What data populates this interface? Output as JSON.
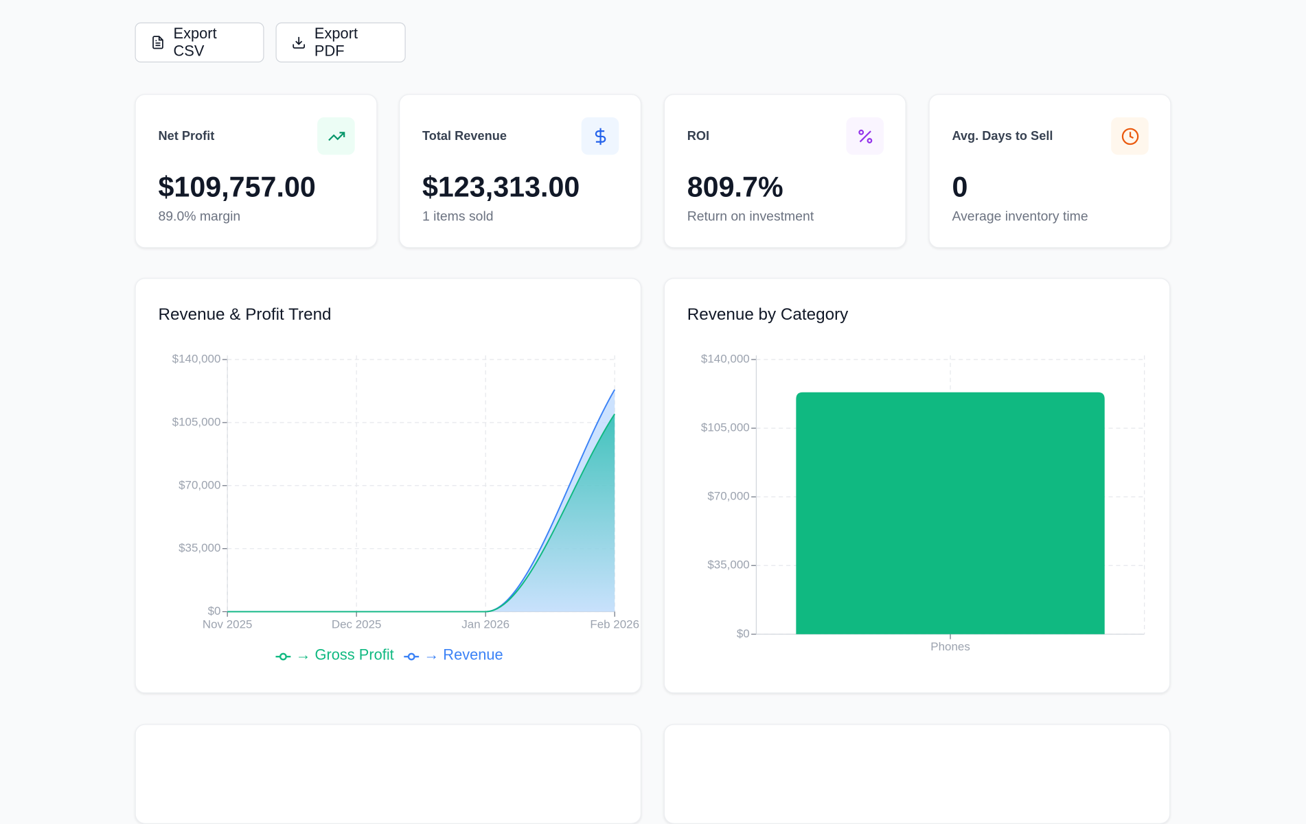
{
  "toolbar": {
    "buttons": [
      "Export CSV",
      "Export PDF"
    ]
  },
  "kpis": [
    {
      "label": "Net Profit",
      "value": "$109,757.00",
      "sub": "89.0% margin"
    },
    {
      "label": "Total Revenue",
      "value": "$123,313.00",
      "sub": "1 items sold"
    },
    {
      "label": "ROI",
      "value": "809.7%",
      "sub": "Return on investment"
    },
    {
      "label": "Avg. Days to Sell",
      "value": "0",
      "sub": "Average inventory time"
    }
  ],
  "chart_data": [
    {
      "type": "line",
      "title": "Revenue & Profit Trend",
      "categories": [
        "Nov 2025",
        "Dec 2025",
        "Jan 2026",
        "Feb 2026"
      ],
      "series": [
        {
          "name": "→ Gross Profit",
          "color": "#10b981",
          "values": [
            0,
            0,
            0,
            109757
          ]
        },
        {
          "name": "→ Revenue",
          "color": "#3b82f6",
          "values": [
            0,
            0,
            0,
            123313
          ]
        }
      ],
      "ylim": [
        0,
        140000
      ],
      "yticks": [
        {
          "value": 0,
          "label": "$0"
        },
        {
          "value": 35000,
          "label": "$35,000"
        },
        {
          "value": 70000,
          "label": "$70,000"
        },
        {
          "value": 105000,
          "label": "$105,000"
        },
        {
          "value": 140000,
          "label": "$140,000"
        }
      ],
      "grid": true
    },
    {
      "type": "bar",
      "title": "Revenue by Category",
      "categories": [
        "Phones"
      ],
      "values": [
        123313
      ],
      "color": "#10b981",
      "ylim": [
        0,
        140000
      ],
      "yticks": [
        {
          "value": 0,
          "label": "$0"
        },
        {
          "value": 35000,
          "label": "$35,000"
        },
        {
          "value": 70000,
          "label": "$70,000"
        },
        {
          "value": 105000,
          "label": "$105,000"
        },
        {
          "value": 140000,
          "label": "$140,000"
        }
      ],
      "grid": true
    }
  ]
}
